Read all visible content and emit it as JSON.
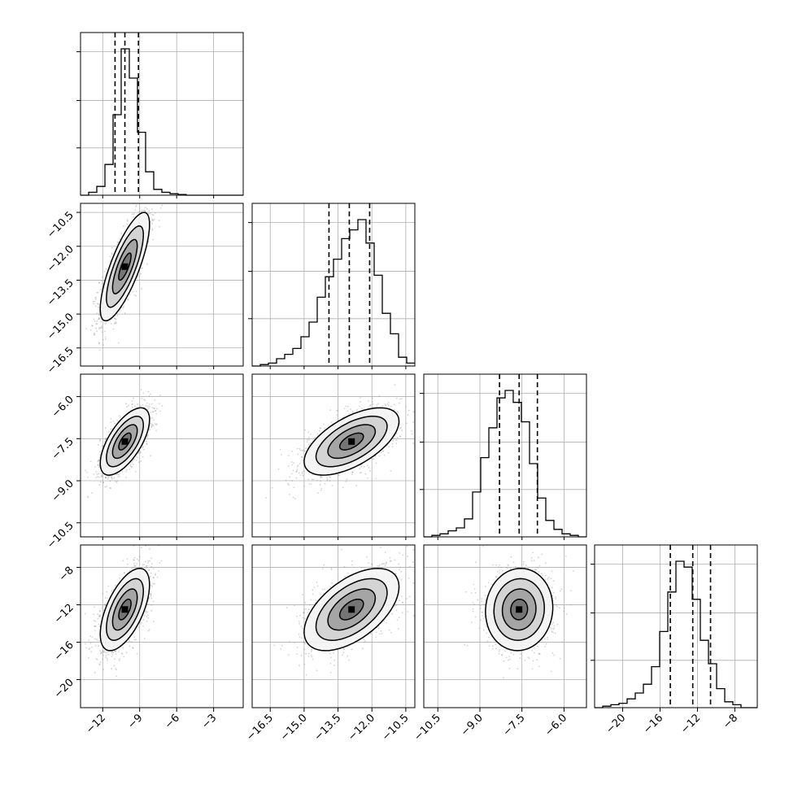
{
  "chart_data": {
    "type": "corner",
    "title": "",
    "parameters": [
      {
        "name": "",
        "range": [
          -13.8,
          -0.6
        ],
        "ticks": [
          -12,
          -9,
          -6,
          -3
        ],
        "tick_labels": [
          "−12",
          "−9",
          "−6",
          "−3"
        ],
        "quantiles": [
          -11.0,
          -10.2,
          -9.1
        ],
        "hist": {
          "edges_start": -13.8,
          "bin_width": 0.66,
          "counts": [
            0,
            0.02,
            0.06,
            0.21,
            0.55,
            1.0,
            0.8,
            0.43,
            0.16,
            0.04,
            0.02,
            0.01,
            0.005,
            0,
            0,
            0,
            0,
            0,
            0,
            0
          ]
        }
      },
      {
        "name": "",
        "range": [
          -17.3,
          -10.1
        ],
        "ticks": [
          -16.5,
          -15.0,
          -13.5,
          -12.0,
          -10.5
        ],
        "tick_labels": [
          "−16.5",
          "−15.0",
          "−13.5",
          "−12.0",
          "−10.5"
        ],
        "quantiles": [
          -13.9,
          -13.0,
          -12.1
        ],
        "hist": {
          "edges_start": -17.3,
          "bin_width": 0.36,
          "counts": [
            0,
            0.01,
            0.02,
            0.05,
            0.08,
            0.12,
            0.2,
            0.3,
            0.47,
            0.61,
            0.73,
            0.87,
            0.93,
            1.0,
            0.84,
            0.62,
            0.36,
            0.22,
            0.06,
            0.02
          ]
        }
      },
      {
        "name": "",
        "range": [
          -11.0,
          -5.2
        ],
        "ticks": [
          -10.5,
          -9.0,
          -7.5,
          -6.0
        ],
        "tick_labels": [
          "−10.5",
          "−9.0",
          "−7.5",
          "−6.0"
        ],
        "quantiles": [
          -8.3,
          -7.6,
          -6.95
        ],
        "hist": {
          "edges_start": -11.0,
          "bin_width": 0.29,
          "counts": [
            0,
            0.01,
            0.02,
            0.04,
            0.06,
            0.12,
            0.3,
            0.53,
            0.73,
            0.93,
            0.98,
            0.9,
            0.77,
            0.49,
            0.26,
            0.11,
            0.05,
            0.02,
            0.01,
            0
          ]
        }
      },
      {
        "name": "",
        "range": [
          -23.0,
          -5.6
        ],
        "ticks": [
          -20,
          -16,
          -12,
          -8
        ],
        "tick_labels": [
          "−20",
          "−16",
          "−12",
          "−8"
        ],
        "quantiles": [
          -14.9,
          -12.5,
          -10.6
        ],
        "hist": {
          "edges_start": -23.0,
          "bin_width": 0.87,
          "counts": [
            0,
            0.01,
            0.02,
            0.03,
            0.06,
            0.1,
            0.16,
            0.28,
            0.52,
            0.79,
            1.0,
            0.96,
            0.74,
            0.46,
            0.3,
            0.13,
            0.04,
            0.02,
            0,
            0
          ]
        }
      }
    ],
    "pairs": [
      {
        "x": 0,
        "y": 1,
        "mean": [
          -10.2,
          -12.9
        ],
        "sd": [
          1.0,
          1.2
        ],
        "rho": 0.78
      },
      {
        "x": 0,
        "y": 2,
        "mean": [
          -10.2,
          -7.6
        ],
        "sd": [
          1.0,
          0.6
        ],
        "rho": 0.65
      },
      {
        "x": 1,
        "y": 2,
        "mean": [
          -12.9,
          -7.6
        ],
        "sd": [
          1.05,
          0.6
        ],
        "rho": 0.6
      },
      {
        "x": 0,
        "y": 3,
        "mean": [
          -10.2,
          -12.5
        ],
        "sd": [
          1.0,
          2.2
        ],
        "rho": 0.6
      },
      {
        "x": 1,
        "y": 3,
        "mean": [
          -12.9,
          -12.5
        ],
        "sd": [
          1.05,
          2.2
        ],
        "rho": 0.55
      },
      {
        "x": 2,
        "y": 3,
        "mean": [
          -7.6,
          -12.5
        ],
        "sd": [
          0.6,
          2.2
        ],
        "rho": 0.05
      }
    ],
    "contour_levels_sigma": [
      0.5,
      1.0,
      1.5,
      2.0
    ],
    "grid": true,
    "colors": {
      "points": "#808080",
      "line": "#000000",
      "grid": "#b0b0b0"
    }
  }
}
